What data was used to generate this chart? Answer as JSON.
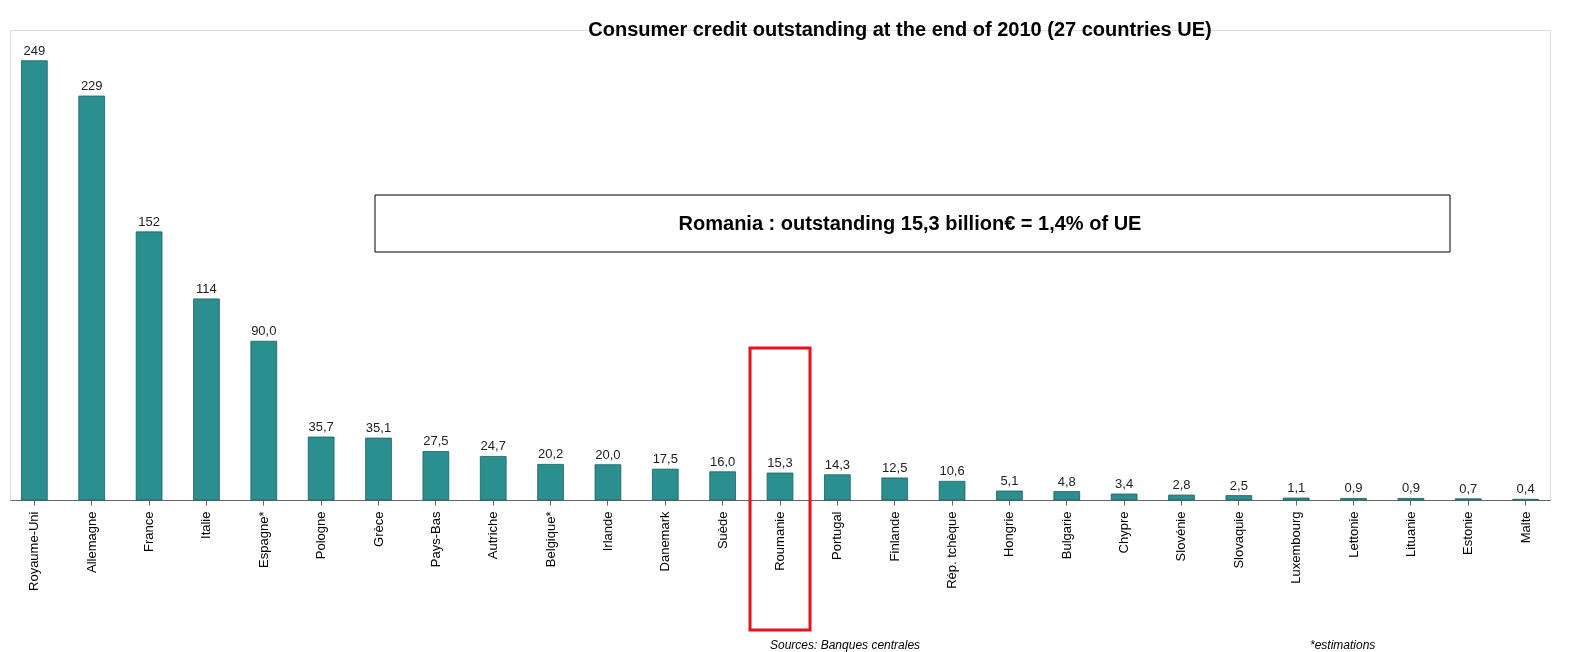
{
  "chart_data": {
    "type": "bar",
    "title": "Consumer credit outstanding at the end of 2010 (27 countries UE)",
    "categories": [
      "Royaume-Uni",
      "Allemagne",
      "France",
      "Italie",
      "Espagne*",
      "Pologne",
      "Grèce",
      "Pays-Bas",
      "Autriche",
      "Belgique*",
      "Irlande",
      "Danemark",
      "Suède",
      "Roumanie",
      "Portugal",
      "Finlande",
      "Rép. tchèque",
      "Hongrie",
      "Bulgarie",
      "Chypre",
      "Slovénie",
      "Slovaquie",
      "Luxembourg",
      "Lettonie",
      "Lituanie",
      "Estonie",
      "Malte"
    ],
    "values": [
      249,
      229,
      152,
      114,
      90.0,
      35.7,
      35.1,
      27.5,
      24.7,
      20.2,
      20.0,
      17.5,
      16.0,
      15.3,
      14.3,
      12.5,
      10.6,
      5.1,
      4.8,
      3.4,
      2.8,
      2.5,
      1.1,
      0.9,
      0.9,
      0.7,
      0.4
    ],
    "value_labels": [
      "249",
      "229",
      "152",
      "114",
      "90,0",
      "35,7",
      "35,1",
      "27,5",
      "24,7",
      "20,2",
      "20,0",
      "17,5",
      "16,0",
      "15,3",
      "14,3",
      "12,5",
      "10,6",
      "5,1",
      "4,8",
      "3,4",
      "2,8",
      "2,5",
      "1,1",
      "0,9",
      "0,9",
      "0,7",
      "0,4"
    ],
    "color": "#2b8f8f",
    "grid": false,
    "annotations": [
      "Romania : outstanding 15,3 billion€  =  1,4% of UE",
      "Sources: Banques centrales",
      "*estimations"
    ]
  }
}
